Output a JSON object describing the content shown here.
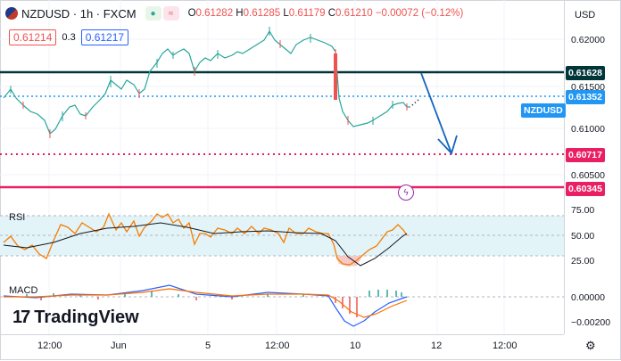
{
  "header": {
    "symbol": "NZDUSD · 1h · FXCM",
    "ohlc": [
      {
        "k": "O",
        "v": "0.61282"
      },
      {
        "k": "H",
        "v": "0.61285"
      },
      {
        "k": "L",
        "v": "0.61179"
      },
      {
        "k": "C",
        "v": "0.61210"
      },
      {
        "k": "",
        "v": "−0.00072 (−0.12%)"
      }
    ]
  },
  "bidask": {
    "sell": "0.61214",
    "spread": "0.3",
    "buy": "0.61217"
  },
  "price_scale": {
    "currency": "USD",
    "labels": [
      "0.62000",
      "0.61500",
      "0.61000",
      "0.60500",
      "75.00",
      "50.00",
      "25.00",
      "0.00000",
      "−0.00200"
    ],
    "tags": [
      {
        "text": "0.61628",
        "color": "#00363a"
      },
      {
        "text": "0.61352",
        "color": "#2196f3"
      },
      {
        "text": "NZDUSD",
        "color": "#2196f3"
      },
      {
        "text": "0.60717",
        "color": "#e91e63"
      },
      {
        "text": "0.60345",
        "color": "#e91e63"
      }
    ]
  },
  "panes": {
    "rsi": "RSI",
    "macd": "MACD"
  },
  "logo": "TradingView",
  "time_axis": [
    "12:00",
    "Jun",
    "5",
    "12:00",
    "10",
    "12",
    "12:00"
  ],
  "icons": {
    "gear": "settings-icon",
    "flash": "flash-icon"
  }
}
